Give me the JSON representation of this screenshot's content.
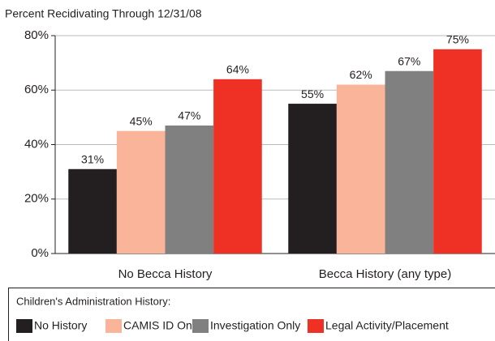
{
  "chart_data": {
    "type": "bar",
    "title": "Percent Recidivating Through 12/31/08",
    "categories": [
      "No Becca History",
      "Becca History (any type)"
    ],
    "series": [
      {
        "name": "No History",
        "color": "#231f20",
        "values": [
          31,
          55
        ],
        "value_labels": [
          "31%",
          "55%"
        ]
      },
      {
        "name": "CAMIS ID Only",
        "color": "#f9b49a",
        "values": [
          45,
          62
        ],
        "value_labels": [
          "45%",
          "62%"
        ]
      },
      {
        "name": "Investigation Only",
        "color": "#808080",
        "values": [
          47,
          67
        ],
        "value_labels": [
          "47%",
          "67%"
        ]
      },
      {
        "name": "Legal Activity/Placement",
        "color": "#ee3124",
        "values": [
          64,
          75
        ],
        "value_labels": [
          "64%",
          "75%"
        ]
      }
    ],
    "ylim": [
      0,
      80
    ],
    "yticks": [
      {
        "value": 0,
        "label": "0%"
      },
      {
        "value": 20,
        "label": "20%"
      },
      {
        "value": 40,
        "label": "40%"
      },
      {
        "value": 60,
        "label": "60%"
      },
      {
        "value": 80,
        "label": "80%"
      }
    ],
    "grid": true,
    "legend_title": "Children's Administration History:"
  }
}
